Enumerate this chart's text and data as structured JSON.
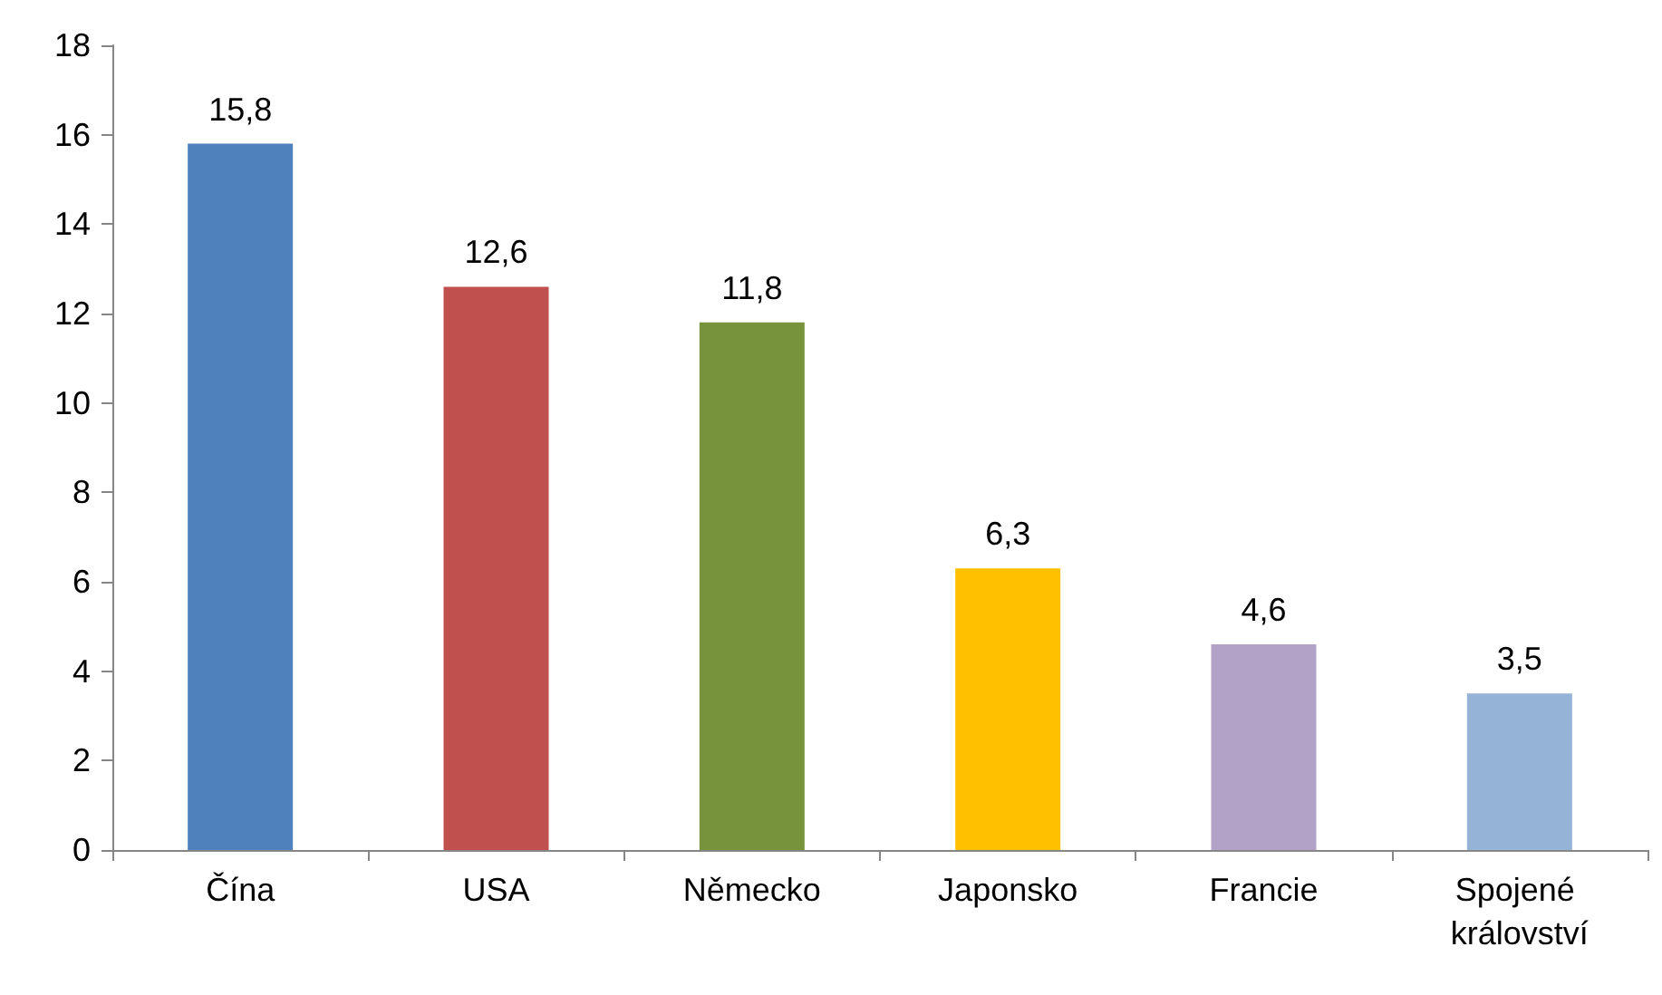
{
  "chart_data": {
    "type": "bar",
    "categories": [
      "Čína",
      "USA",
      "Německo",
      "Japonsko",
      "Francie",
      "Spojené království"
    ],
    "values": [
      15.8,
      12.6,
      11.8,
      6.3,
      4.6,
      3.5
    ],
    "colors": [
      "#4f81bd",
      "#c0504d",
      "#77933c",
      "#ffc000",
      "#b3a2c7",
      "#95b3d7"
    ],
    "value_labels": [
      "15,8",
      "12,6",
      "11,8",
      "6,3",
      "4,6",
      "3,5"
    ],
    "ylim": [
      0,
      18
    ],
    "yticks": [
      0,
      2,
      4,
      6,
      8,
      10,
      12,
      14,
      16,
      18
    ]
  }
}
